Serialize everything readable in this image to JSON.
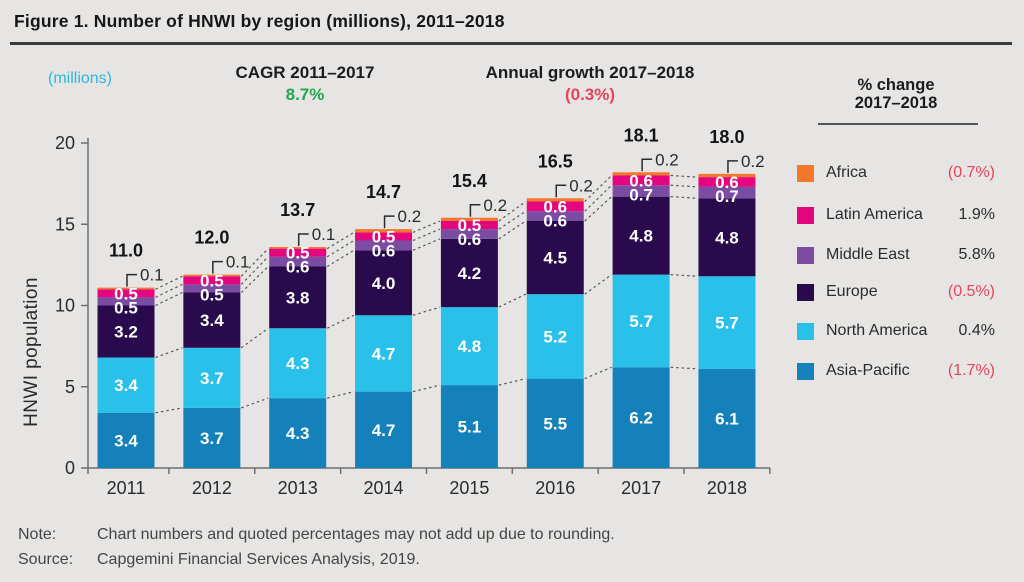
{
  "title": "Figure 1. Number of HNWI by region (millions), 2011–2018",
  "header": {
    "units_label": "(millions)",
    "cagr_label": "CAGR 2011–2017",
    "cagr_value": "8.7%",
    "growth_label": "Annual growth 2017–2018",
    "growth_value": "(0.3%)"
  },
  "colors": {
    "positive_green": "#22A74F",
    "negative_red": "#E8435C",
    "units_cyan": "#2CB5DF",
    "background": "#E6E5E3"
  },
  "legend": {
    "title_line1": "% change",
    "title_line2": "2017–2018",
    "items": [
      {
        "label": "Africa",
        "change": "(0.7%)",
        "negative": true,
        "color": "#F4772C"
      },
      {
        "label": "Latin America",
        "change": "1.9%",
        "negative": false,
        "color": "#E4067F"
      },
      {
        "label": "Middle East",
        "change": "5.8%",
        "negative": false,
        "color": "#7B4DA2"
      },
      {
        "label": "Europe",
        "change": "(0.5%)",
        "negative": true,
        "color": "#290B4D"
      },
      {
        "label": "North America",
        "change": "0.4%",
        "negative": false,
        "color": "#29C0EA"
      },
      {
        "label": "Asia-Pacific",
        "change": "(1.7%)",
        "negative": true,
        "color": "#1581BA"
      }
    ]
  },
  "chart_data": {
    "type": "bar",
    "stacked": true,
    "title": "Number of HNWI by region (millions), 2011–2018",
    "xlabel": "",
    "ylabel": "HNWI population",
    "ylim": [
      0,
      20
    ],
    "yticks": [
      0,
      5,
      10,
      15,
      20
    ],
    "grid": false,
    "legend_position": "right",
    "categories": [
      "2011",
      "2012",
      "2013",
      "2014",
      "2015",
      "2016",
      "2017",
      "2018"
    ],
    "series": [
      {
        "name": "Asia-Pacific",
        "color": "#1581BA",
        "values": [
          3.4,
          3.7,
          4.3,
          4.7,
          5.1,
          5.5,
          6.2,
          6.1
        ]
      },
      {
        "name": "North America",
        "color": "#29C0EA",
        "values": [
          3.4,
          3.7,
          4.3,
          4.7,
          4.8,
          5.2,
          5.7,
          5.7
        ]
      },
      {
        "name": "Europe",
        "color": "#290B4D",
        "values": [
          3.2,
          3.4,
          3.8,
          4.0,
          4.2,
          4.5,
          4.8,
          4.8
        ]
      },
      {
        "name": "Middle East",
        "color": "#7B4DA2",
        "values": [
          0.5,
          0.5,
          0.6,
          0.6,
          0.6,
          0.6,
          0.7,
          0.7
        ]
      },
      {
        "name": "Latin America",
        "color": "#E4067F",
        "values": [
          0.5,
          0.5,
          0.5,
          0.5,
          0.5,
          0.6,
          0.6,
          0.6
        ]
      },
      {
        "name": "Africa",
        "color": "#F4772C",
        "values": [
          0.1,
          0.1,
          0.1,
          0.2,
          0.2,
          0.2,
          0.2,
          0.2
        ]
      }
    ],
    "totals": [
      "11.0",
      "12.0",
      "13.7",
      "14.7",
      "15.4",
      "16.5",
      "18.1",
      "18.0"
    ],
    "africa_callouts": [
      "0.1",
      "0.1",
      "0.1",
      "0.2",
      "0.2",
      "0.2",
      "0.2",
      "0.2"
    ]
  },
  "notes": {
    "note_label": "Note:",
    "note_text": "Chart numbers and quoted percentages may not add up due to rounding.",
    "source_label": "Source:",
    "source_text": "Capgemini Financial Services Analysis, 2019."
  }
}
